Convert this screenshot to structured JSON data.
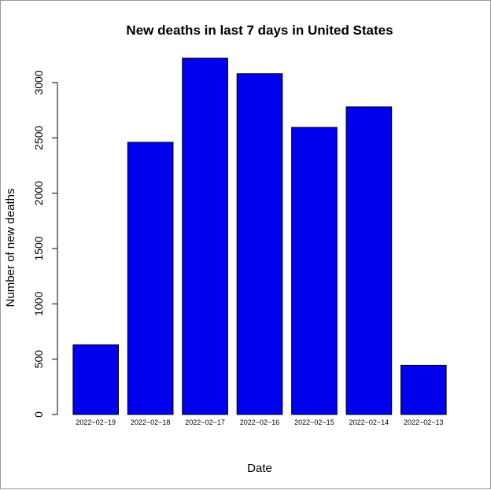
{
  "chart_data": {
    "type": "bar",
    "title": "New deaths in last 7 days in United States",
    "xlabel": "Date",
    "ylabel": "Number of new deaths",
    "categories": [
      "2022−02−19",
      "2022−02−18",
      "2022−02−17",
      "2022−02−16",
      "2022−02−15",
      "2022−02−14",
      "2022−02−13"
    ],
    "values": [
      630,
      2460,
      3220,
      3080,
      2595,
      2780,
      445
    ],
    "ylim": [
      0,
      3220
    ],
    "yticks": [
      0,
      500,
      1000,
      1500,
      2000,
      2500,
      3000
    ],
    "bar_color": "#0000ee",
    "bar_border_color": "#000000",
    "grid": false
  }
}
